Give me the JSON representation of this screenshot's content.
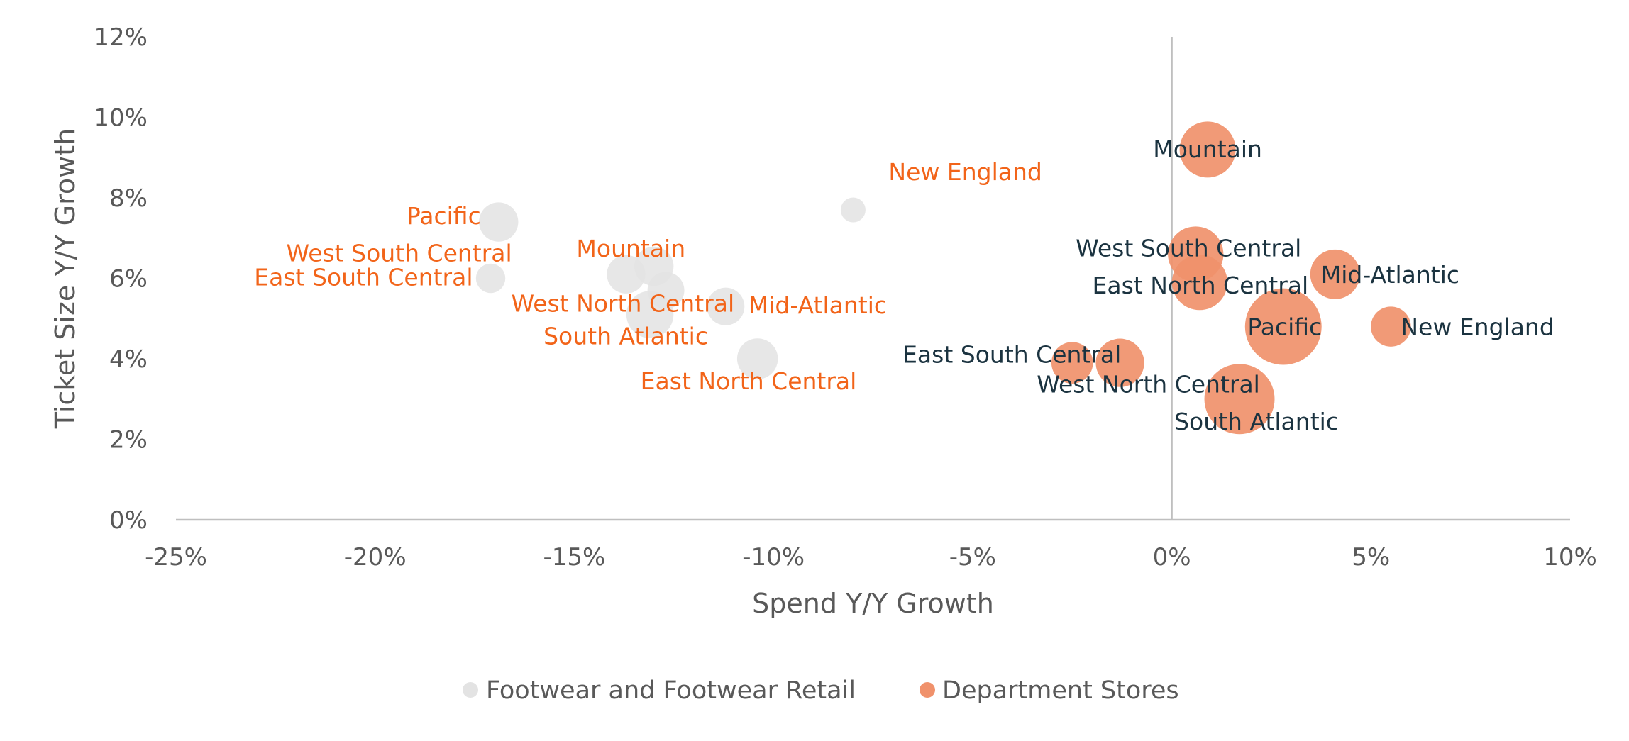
{
  "chart_data": {
    "type": "scatter",
    "subtype": "bubble",
    "title": "",
    "xlabel": "Spend Y/Y Growth",
    "ylabel": "Ticket Size Y/Y Growth",
    "xlim": [
      -0.25,
      0.1
    ],
    "ylim": [
      0,
      0.12
    ],
    "x_ticks": [
      -0.25,
      -0.2,
      -0.15,
      -0.1,
      -0.05,
      0,
      0.05,
      0.1
    ],
    "x_tick_labels": [
      "-25%",
      "-20%",
      "-15%",
      "-10%",
      "-5%",
      "0%",
      "5%",
      "10%"
    ],
    "y_ticks": [
      0,
      0.02,
      0.04,
      0.06,
      0.08,
      0.1,
      0.12
    ],
    "y_tick_labels": [
      "0%",
      "2%",
      "4%",
      "6%",
      "8%",
      "10%",
      "12%"
    ],
    "grid": false,
    "legend": "bottom",
    "series": [
      {
        "name": "Footwear and Footwear Retail",
        "color": "#E3E3E3",
        "label_color": "#F26419",
        "points": [
          {
            "label": "New England",
            "x": -0.08,
            "y": 0.077,
            "size": 1.0
          },
          {
            "label": "Pacific",
            "x": -0.169,
            "y": 0.074,
            "size": 2.5
          },
          {
            "label": "West South Central",
            "x": -0.13,
            "y": 0.063,
            "size": 2.5
          },
          {
            "label": "East South Central",
            "x": -0.171,
            "y": 0.06,
            "size": 1.4
          },
          {
            "label": "Mountain",
            "x": -0.137,
            "y": 0.061,
            "size": 2.4
          },
          {
            "label": "West North Central",
            "x": -0.127,
            "y": 0.057,
            "size": 2.2
          },
          {
            "label": "Mid-Atlantic",
            "x": -0.112,
            "y": 0.053,
            "size": 2.3
          },
          {
            "label": "South Atlantic",
            "x": -0.131,
            "y": 0.051,
            "size": 3.6
          },
          {
            "label": "East North Central",
            "x": -0.104,
            "y": 0.04,
            "size": 2.7
          }
        ]
      },
      {
        "name": "Department Stores",
        "color": "#F0916B",
        "label_color": "#1B3340",
        "points": [
          {
            "label": "Mountain",
            "x": 0.009,
            "y": 0.092,
            "size": 5.1
          },
          {
            "label": "West South Central",
            "x": 0.006,
            "y": 0.066,
            "size": 5.0
          },
          {
            "label": "East North Central",
            "x": 0.007,
            "y": 0.059,
            "size": 5.0
          },
          {
            "label": "Mid-Atlantic",
            "x": 0.041,
            "y": 0.061,
            "size": 4.0
          },
          {
            "label": "Pacific",
            "x": 0.028,
            "y": 0.048,
            "size": 9.5
          },
          {
            "label": "New England",
            "x": 0.055,
            "y": 0.048,
            "size": 2.6
          },
          {
            "label": "East South Central",
            "x": -0.025,
            "y": 0.039,
            "size": 2.8
          },
          {
            "label": "West North Central",
            "x": -0.013,
            "y": 0.039,
            "size": 3.8
          },
          {
            "label": "South Atlantic",
            "x": 0.017,
            "y": 0.03,
            "size": 8.0
          }
        ]
      }
    ]
  }
}
